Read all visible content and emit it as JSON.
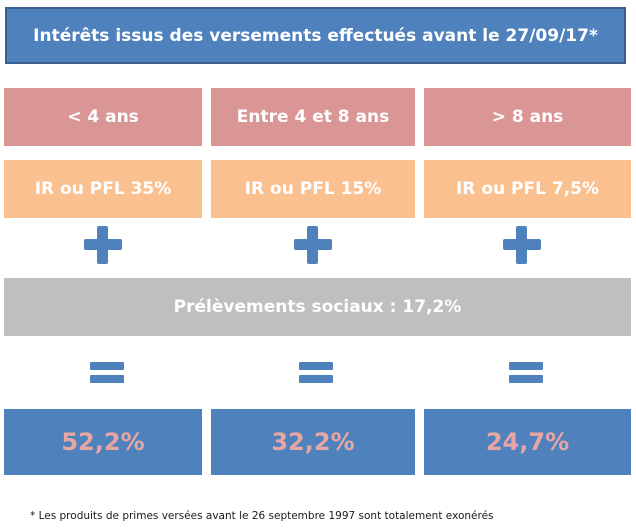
{
  "header": {
    "title": "Intérêts issus des versements effectués avant le 27/09/17*"
  },
  "columns": [
    {
      "duration": "< 4 ans",
      "tax": "IR ou PFL 35%",
      "result": "52,2%"
    },
    {
      "duration": "Entre 4 et 8 ans",
      "tax": "IR ou PFL 15%",
      "result": "32,2%"
    },
    {
      "duration": "> 8 ans",
      "tax": "IR ou PFL 7,5%",
      "result": "24,7%"
    }
  ],
  "social": {
    "label": "Prélèvements sociaux : 17,2%"
  },
  "operators": {
    "plus": "plus-icon",
    "equals": "equals-icon"
  },
  "footnote": "* Les produits de primes versées avant le 26 septembre 1997 sont totalement exonérés",
  "colors": {
    "header": "#4f81bd",
    "duration": "#d99694",
    "tax": "#fac090",
    "social": "#bfbfbf",
    "result": "#4f81bd",
    "result_text": "#e6a6a4"
  }
}
